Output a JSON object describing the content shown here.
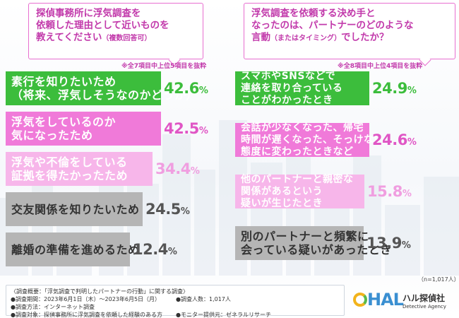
{
  "left": {
    "question_lines": [
      "探偵事務所に浮気調査を",
      "依頼した理由として近いものを"
    ],
    "question_last": "教えてください",
    "question_suffix": "（複数回答可）",
    "note": "※全7項目中上位5項目を抜粋"
  },
  "right": {
    "question_lines": [
      "浮気調査を依頼する決め手と",
      "なったのは、パートナーのどのような"
    ],
    "question_last": "言動",
    "question_suffix": "（またはタイミング）",
    "question_end": "でしたか？",
    "note": "※全8項目中上位4項目を抜粋"
  },
  "chart_data": [
    {
      "type": "bar",
      "orientation": "horizontal",
      "categories": [
        "素行を知りたいため\n（将来、浮気しそうなのかどうか）",
        "浮気をしているのか\n気になったため",
        "浮気や不倫をしている\n証拠を得たかったため",
        "交友関係を知りたいため",
        "離婚の準備を進めるため"
      ],
      "values": [
        42.6,
        42.5,
        34.4,
        24.5,
        12.4
      ],
      "unit": "%",
      "colors": [
        "#3cbd3c",
        "#f07ad9",
        "#f7b6ea",
        "#b5b5b5",
        "#b5b5b5"
      ],
      "label_colors": [
        "#3cbd3c",
        "#e056c5",
        "#f09ee0",
        "#555555",
        "#555555"
      ]
    },
    {
      "type": "bar",
      "orientation": "horizontal",
      "categories": [
        "スマホやSNSなどで\n連絡を取り合っている\nことがわかったとき",
        "会話が少なくなった、帰宅\n時間が遅くなった、そっけない\n態度に変わったときなど",
        "他のパートナーと親密な\n関係があるという\n疑いが生じたとき",
        "別のパートナーと頻繁に\n会っている疑いがあったとき"
      ],
      "values": [
        24.9,
        24.6,
        15.8,
        13.9
      ],
      "unit": "%",
      "colors": [
        "#3cbd3c",
        "#f07ad9",
        "#f7b6ea",
        "#b5b5b5"
      ],
      "label_colors": [
        "#3cbd3c",
        "#e056c5",
        "#f09ee0",
        "#555555"
      ]
    }
  ],
  "sample_size": "（n=1,017人）",
  "footer": {
    "survey_title": "〈調査概要：「浮気調査で判明したパートナーの行動」に関する調査〉",
    "period": "●調査期間：2023年6月1日（木）〜2023年6月5日（月）",
    "respondents": "●調査人数：1,017人",
    "method": "●調査方法：インターネット調査",
    "target": "●調査対象：探偵事務所に浮気調査を依頼した経験のある方",
    "monitor": "●モニター提供元：ゼネラルリサーチ"
  },
  "logo": {
    "mark": "HAL",
    "name_jp": "ハル探偵社",
    "name_en": "Detective Agency"
  }
}
